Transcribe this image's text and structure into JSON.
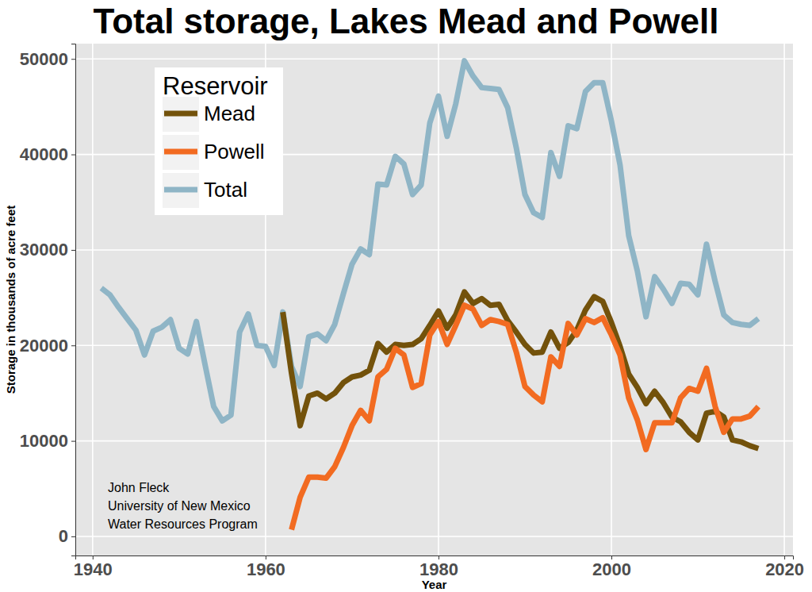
{
  "chart_data": {
    "type": "line",
    "title": "Total storage, Lakes Mead and Powell",
    "x_label": "Year",
    "y_label": "Storage in thousands of acre feet",
    "legend_title": "Reservoir",
    "legend": "upper left",
    "grid": true,
    "annotations": [
      "John Fleck",
      "University of New Mexico",
      "Water Resources Program"
    ],
    "xlim": [
      1938,
      2021
    ],
    "xticks": [
      1940,
      1960,
      1980,
      2000,
      2020
    ],
    "ylim": [
      -2000,
      51600
    ],
    "yticks": [
      0,
      10000,
      20000,
      30000,
      40000,
      50000
    ],
    "x": [
      1941,
      1942,
      1943,
      1944,
      1945,
      1946,
      1947,
      1948,
      1949,
      1950,
      1951,
      1952,
      1953,
      1954,
      1955,
      1956,
      1957,
      1958,
      1959,
      1960,
      1961,
      1962,
      1963,
      1964,
      1965,
      1966,
      1967,
      1968,
      1969,
      1970,
      1971,
      1972,
      1973,
      1974,
      1975,
      1976,
      1977,
      1978,
      1979,
      1980,
      1981,
      1982,
      1983,
      1984,
      1985,
      1986,
      1987,
      1988,
      1989,
      1990,
      1991,
      1992,
      1993,
      1994,
      1995,
      1996,
      1997,
      1998,
      1999,
      2000,
      2001,
      2002,
      2003,
      2004,
      2005,
      2006,
      2007,
      2008,
      2009,
      2010,
      2011,
      2012,
      2013,
      2014,
      2015,
      2016,
      2017
    ],
    "series": [
      {
        "name": "Mead",
        "color": "#73520b",
        "values": [
          null,
          null,
          null,
          null,
          null,
          null,
          null,
          null,
          null,
          null,
          null,
          null,
          null,
          null,
          null,
          null,
          null,
          null,
          null,
          null,
          null,
          23500,
          17100,
          11600,
          14700,
          15000,
          14400,
          15000,
          16100,
          16700,
          16900,
          17400,
          20200,
          19300,
          20100,
          20000,
          20100,
          20700,
          22100,
          23600,
          21800,
          23200,
          25600,
          24400,
          24900,
          24200,
          24300,
          22600,
          21400,
          20100,
          19200,
          19300,
          21400,
          19700,
          20300,
          21600,
          23700,
          25100,
          24600,
          22400,
          19900,
          17000,
          15600,
          13900,
          15200,
          14000,
          12500,
          12000,
          10900,
          10100,
          12900,
          13100,
          12500,
          10100,
          9900,
          9500,
          9200
        ]
      },
      {
        "name": "Powell",
        "color": "#f26b21",
        "values": [
          null,
          null,
          null,
          null,
          null,
          null,
          null,
          null,
          null,
          null,
          null,
          null,
          null,
          null,
          null,
          null,
          null,
          null,
          null,
          null,
          null,
          null,
          700,
          4100,
          6200,
          6200,
          6100,
          7300,
          9300,
          11600,
          13200,
          12100,
          16700,
          17500,
          19700,
          19000,
          15600,
          16000,
          21100,
          22500,
          20100,
          22100,
          24200,
          23800,
          22100,
          22700,
          22500,
          22200,
          19300,
          15700,
          14800,
          14100,
          18800,
          17800,
          22300,
          21100,
          22800,
          22400,
          22900,
          21100,
          19000,
          14500,
          12200,
          9100,
          11900,
          11900,
          11900,
          14500,
          15500,
          15200,
          17600,
          13600,
          10900,
          12300,
          12300,
          12600,
          13600
        ]
      },
      {
        "name": "Total",
        "color": "#8fb5c6",
        "values": [
          26000,
          25300,
          24000,
          22800,
          21600,
          19000,
          21500,
          21900,
          22700,
          19700,
          19100,
          22500,
          18000,
          13600,
          12100,
          12700,
          21400,
          23300,
          20000,
          19900,
          17900,
          23500,
          17800,
          15700,
          20900,
          21200,
          20500,
          22200,
          25400,
          28500,
          30100,
          29500,
          36900,
          36800,
          39800,
          39000,
          35800,
          36800,
          43300,
          46100,
          41900,
          45300,
          49800,
          48200,
          47000,
          46900,
          46800,
          44900,
          40700,
          35800,
          33900,
          33400,
          40200,
          37700,
          43000,
          42700,
          46600,
          47500,
          47500,
          43500,
          38900,
          31500,
          27800,
          23000,
          27200,
          25900,
          24400,
          26500,
          26400,
          25300,
          30600,
          26700,
          23200,
          22400,
          22200,
          22100,
          22800
        ]
      }
    ]
  }
}
